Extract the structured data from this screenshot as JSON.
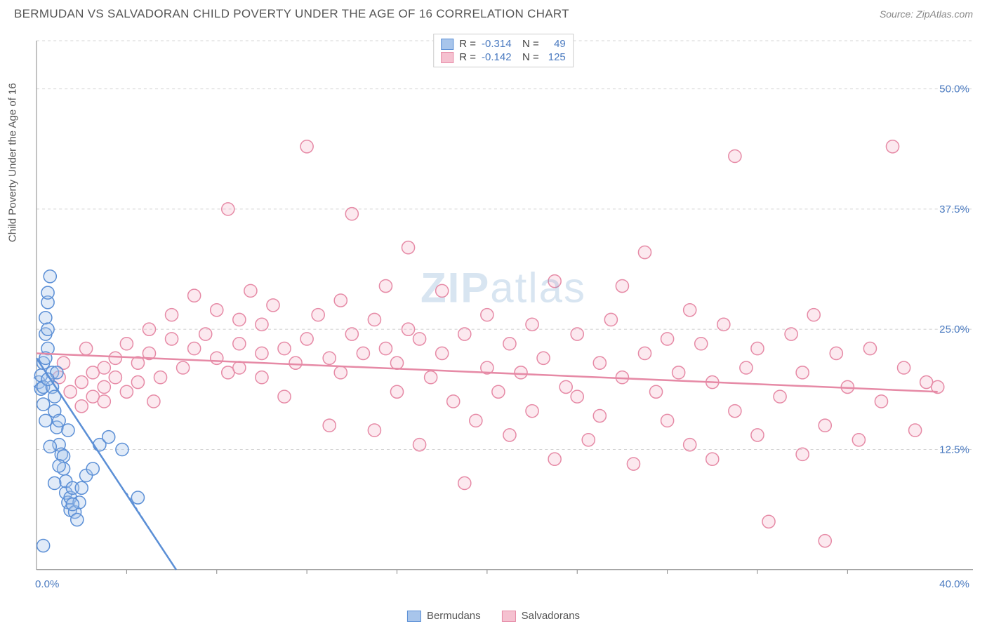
{
  "title": "BERMUDAN VS SALVADORAN CHILD POVERTY UNDER THE AGE OF 16 CORRELATION CHART",
  "source": "Source: ZipAtlas.com",
  "y_axis_label": "Child Poverty Under the Age of 16",
  "watermark": "ZIPatlas",
  "chart": {
    "type": "scatter",
    "xlim": [
      0,
      40
    ],
    "ylim": [
      0,
      55
    ],
    "x_ticks": [
      0,
      40
    ],
    "x_tick_labels": [
      "0.0%",
      "40.0%"
    ],
    "x_minor_ticks": [
      4,
      8,
      12,
      16,
      20,
      24,
      28,
      32,
      36
    ],
    "y_ticks": [
      12.5,
      25.0,
      37.5,
      50.0
    ],
    "y_tick_labels": [
      "12.5%",
      "25.0%",
      "37.5%",
      "50.0%"
    ],
    "background_color": "#ffffff",
    "grid_color": "#d5d5d5",
    "grid_dash": "4,4",
    "axis_color": "#888888",
    "tick_label_color": "#4a7ac0",
    "marker_radius": 9,
    "marker_stroke_width": 1.5,
    "marker_fill_opacity": 0.35,
    "trend_line_width": 2.5
  },
  "series": {
    "bermudans": {
      "label": "Bermudans",
      "color": "#5b8fd6",
      "fill": "#a8c5eb",
      "R": "-0.314",
      "N": "49",
      "trend": {
        "x1": 0,
        "y1": 22,
        "x2": 6.2,
        "y2": 0
      },
      "trend_dashed_ext": {
        "x1": 4,
        "y1": 8,
        "x2": 6.2,
        "y2": 0
      },
      "points": [
        [
          0.1,
          19.5
        ],
        [
          0.2,
          20.2
        ],
        [
          0.2,
          18.8
        ],
        [
          0.3,
          21.5
        ],
        [
          0.3,
          19.0
        ],
        [
          0.3,
          17.2
        ],
        [
          0.4,
          24.5
        ],
        [
          0.4,
          26.2
        ],
        [
          0.5,
          27.8
        ],
        [
          0.5,
          25.0
        ],
        [
          0.5,
          23.0
        ],
        [
          0.5,
          28.8
        ],
        [
          0.6,
          30.5
        ],
        [
          0.7,
          20.5
        ],
        [
          0.7,
          19.0
        ],
        [
          0.8,
          18.0
        ],
        [
          0.8,
          16.5
        ],
        [
          0.9,
          14.8
        ],
        [
          1.0,
          15.5
        ],
        [
          1.0,
          13.0
        ],
        [
          1.1,
          12.0
        ],
        [
          1.2,
          10.5
        ],
        [
          1.2,
          11.8
        ],
        [
          1.3,
          8.0
        ],
        [
          1.3,
          9.2
        ],
        [
          1.4,
          7.0
        ],
        [
          1.5,
          6.2
        ],
        [
          1.5,
          7.5
        ],
        [
          1.6,
          8.5
        ],
        [
          1.7,
          6.0
        ],
        [
          1.8,
          5.2
        ],
        [
          1.9,
          7.0
        ],
        [
          2.0,
          8.5
        ],
        [
          2.2,
          9.8
        ],
        [
          2.5,
          10.5
        ],
        [
          2.8,
          13.0
        ],
        [
          3.2,
          13.8
        ],
        [
          3.8,
          12.5
        ],
        [
          0.3,
          2.5
        ],
        [
          1.6,
          6.8
        ],
        [
          1.0,
          10.8
        ],
        [
          0.6,
          12.8
        ],
        [
          0.4,
          15.5
        ],
        [
          4.5,
          7.5
        ],
        [
          0.8,
          9.0
        ],
        [
          1.4,
          14.5
        ],
        [
          0.9,
          20.5
        ],
        [
          0.4,
          22.0
        ],
        [
          0.5,
          19.8
        ]
      ]
    },
    "salvadorans": {
      "label": "Salvadorans",
      "color": "#e68aa6",
      "fill": "#f5c1d0",
      "R": "-0.142",
      "N": "125",
      "trend": {
        "x1": 0,
        "y1": 22.5,
        "x2": 40,
        "y2": 18.5
      },
      "points": [
        [
          1.0,
          20.0
        ],
        [
          1.5,
          18.5
        ],
        [
          2.0,
          19.5
        ],
        [
          2.0,
          17.0
        ],
        [
          2.5,
          20.5
        ],
        [
          2.5,
          18.0
        ],
        [
          3.0,
          21.0
        ],
        [
          3.0,
          19.0
        ],
        [
          3.0,
          17.5
        ],
        [
          3.5,
          20.0
        ],
        [
          3.5,
          22.0
        ],
        [
          4.0,
          18.5
        ],
        [
          4.0,
          23.5
        ],
        [
          4.5,
          19.5
        ],
        [
          4.5,
          21.5
        ],
        [
          5.0,
          22.5
        ],
        [
          5.0,
          25.0
        ],
        [
          5.5,
          20.0
        ],
        [
          6.0,
          24.0
        ],
        [
          6.0,
          26.5
        ],
        [
          6.5,
          21.0
        ],
        [
          7.0,
          23.0
        ],
        [
          7.0,
          28.5
        ],
        [
          7.5,
          24.5
        ],
        [
          8.0,
          22.0
        ],
        [
          8.0,
          27.0
        ],
        [
          8.5,
          37.5
        ],
        [
          8.5,
          20.5
        ],
        [
          9.0,
          21.0
        ],
        [
          9.0,
          23.5
        ],
        [
          9.0,
          26.0
        ],
        [
          9.5,
          29.0
        ],
        [
          10.0,
          20.0
        ],
        [
          10.0,
          22.5
        ],
        [
          10.0,
          25.5
        ],
        [
          10.5,
          27.5
        ],
        [
          11.0,
          23.0
        ],
        [
          11.0,
          18.0
        ],
        [
          11.5,
          21.5
        ],
        [
          12.0,
          24.0
        ],
        [
          12.0,
          44.0
        ],
        [
          12.5,
          26.5
        ],
        [
          13.0,
          22.0
        ],
        [
          13.0,
          15.0
        ],
        [
          13.5,
          28.0
        ],
        [
          13.5,
          20.5
        ],
        [
          14.0,
          24.5
        ],
        [
          14.0,
          37.0
        ],
        [
          14.5,
          22.5
        ],
        [
          15.0,
          14.5
        ],
        [
          15.0,
          26.0
        ],
        [
          15.5,
          29.5
        ],
        [
          15.5,
          23.0
        ],
        [
          16.0,
          18.5
        ],
        [
          16.0,
          21.5
        ],
        [
          16.5,
          25.0
        ],
        [
          16.5,
          33.5
        ],
        [
          17.0,
          13.0
        ],
        [
          17.0,
          24.0
        ],
        [
          17.5,
          20.0
        ],
        [
          18.0,
          22.5
        ],
        [
          18.0,
          29.0
        ],
        [
          18.5,
          17.5
        ],
        [
          19.0,
          9.0
        ],
        [
          19.0,
          24.5
        ],
        [
          19.5,
          15.5
        ],
        [
          20.0,
          21.0
        ],
        [
          20.0,
          26.5
        ],
        [
          20.5,
          18.5
        ],
        [
          21.0,
          14.0
        ],
        [
          21.0,
          23.5
        ],
        [
          21.5,
          20.5
        ],
        [
          22.0,
          16.5
        ],
        [
          22.0,
          25.5
        ],
        [
          22.5,
          22.0
        ],
        [
          23.0,
          30.0
        ],
        [
          23.0,
          11.5
        ],
        [
          23.5,
          19.0
        ],
        [
          24.0,
          18.0
        ],
        [
          24.0,
          24.5
        ],
        [
          24.5,
          13.5
        ],
        [
          25.0,
          21.5
        ],
        [
          25.0,
          16.0
        ],
        [
          25.5,
          26.0
        ],
        [
          26.0,
          20.0
        ],
        [
          26.0,
          29.5
        ],
        [
          26.5,
          11.0
        ],
        [
          27.0,
          22.5
        ],
        [
          27.0,
          33.0
        ],
        [
          27.5,
          18.5
        ],
        [
          28.0,
          15.5
        ],
        [
          28.0,
          24.0
        ],
        [
          28.5,
          20.5
        ],
        [
          29.0,
          13.0
        ],
        [
          29.0,
          27.0
        ],
        [
          29.5,
          23.5
        ],
        [
          30.0,
          19.5
        ],
        [
          30.0,
          11.5
        ],
        [
          30.5,
          25.5
        ],
        [
          31.0,
          43.0
        ],
        [
          31.0,
          16.5
        ],
        [
          31.5,
          21.0
        ],
        [
          32.0,
          14.0
        ],
        [
          32.0,
          23.0
        ],
        [
          32.5,
          5.0
        ],
        [
          33.0,
          18.0
        ],
        [
          33.5,
          24.5
        ],
        [
          34.0,
          12.0
        ],
        [
          34.0,
          20.5
        ],
        [
          34.5,
          26.5
        ],
        [
          35.0,
          15.0
        ],
        [
          35.0,
          3.0
        ],
        [
          35.5,
          22.5
        ],
        [
          36.0,
          19.0
        ],
        [
          36.5,
          13.5
        ],
        [
          37.0,
          23.0
        ],
        [
          37.5,
          17.5
        ],
        [
          38.0,
          44.0
        ],
        [
          38.5,
          21.0
        ],
        [
          39.0,
          14.5
        ],
        [
          39.5,
          19.5
        ],
        [
          40.0,
          19.0
        ],
        [
          1.2,
          21.5
        ],
        [
          2.2,
          23.0
        ],
        [
          5.2,
          17.5
        ]
      ]
    }
  },
  "stats_box": {
    "R_label": "R =",
    "N_label": "N ="
  }
}
